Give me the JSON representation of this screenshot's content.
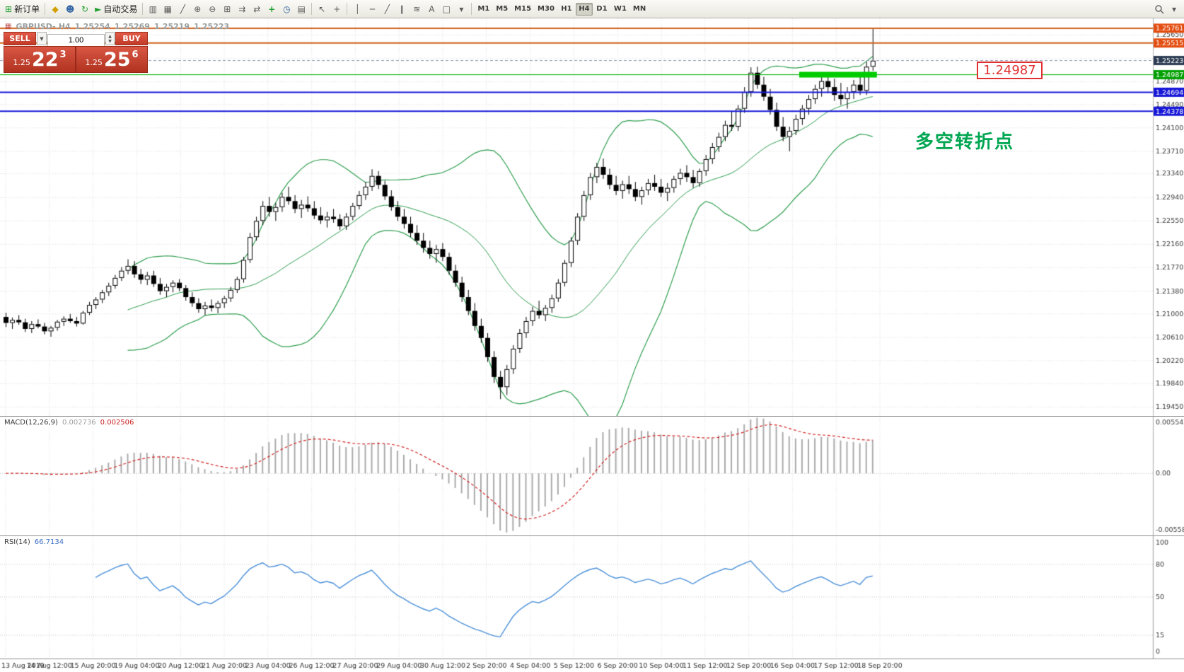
{
  "toolbar": {
    "new_order_label": "新订单",
    "autotrading_label": "自动交易",
    "timeframes": [
      "M1",
      "M5",
      "M15",
      "M30",
      "H1",
      "H4",
      "D1",
      "W1",
      "MN"
    ],
    "active_timeframe": "H4"
  },
  "icons": {
    "new_order": "⊞",
    "marketwatch": "◆",
    "navigator": "☻",
    "refresh": "↻",
    "autotrading_play": "►",
    "chart_bars": "▥",
    "chart_candles": "▦",
    "chart_line": "╱",
    "zoom_in": "⊕",
    "zoom_out": "⊖",
    "tile_windows": "⊞",
    "auto_scroll": "⇉",
    "chart_shift": "⇄",
    "indicators": "+",
    "periods": "◷",
    "templates": "▤",
    "cursor": "↖",
    "crosshair": "+",
    "vline": "│",
    "hline": "─",
    "trendline": "╱",
    "channel": "∥",
    "fibonacci": "≋",
    "text": "A",
    "label": "□",
    "shapes": "▾",
    "dropdown": "▼",
    "spin_up": "▲",
    "spin_down": "▼",
    "overflow": "▾",
    "chart_symbol": "▦"
  },
  "chart_header": {
    "symbol_period": "GBPUSD-.H4",
    "open": "1.25254",
    "high": "1.25269",
    "low": "1.25219",
    "close": "1.25223"
  },
  "trade_panel": {
    "sell_label": "SELL",
    "buy_label": "BUY",
    "volume": "1.00",
    "sell_price_prefix": "1.25",
    "sell_price_big": "22",
    "sell_price_sup": "3",
    "buy_price_prefix": "1.25",
    "buy_price_big": "25",
    "buy_price_sup": "6"
  },
  "annotations": {
    "price_label": "1.24987",
    "note_text": "多空转折点"
  },
  "macd_panel": {
    "label": "MACD(12,26,9)",
    "value_main": "0.002736",
    "value_signal": "0.002506",
    "axis": [
      "0.005543",
      "0.00",
      "-0.005583"
    ]
  },
  "rsi_panel": {
    "label": "RSI(14)",
    "value": "66.7134",
    "axis": [
      "100",
      "80",
      "50",
      "15",
      "0"
    ]
  },
  "time_axis": {
    "labels": [
      "13 Aug 2019",
      "14 Aug 12:00",
      "15 Aug 20:00",
      "19 Aug 04:00",
      "20 Aug 12:00",
      "21 Aug 20:00",
      "23 Aug 04:00",
      "26 Aug 12:00",
      "27 Aug 20:00",
      "29 Aug 04:00",
      "30 Aug 12:00",
      "2 Sep 20:00",
      "4 Sep 04:00",
      "5 Sep 12:00",
      "6 Sep 20:00",
      "10 Sep 04:00",
      "11 Sep 12:00",
      "12 Sep 20:00",
      "16 Sep 04:00",
      "17 Sep 12:00",
      "18 Sep 20:00"
    ]
  },
  "chart_data": [
    {
      "type": "candlestick",
      "title": "GBPUSD- H4",
      "ylim": [
        1.193,
        1.25925
      ],
      "bollinger": {
        "period": 20,
        "deviation": 2,
        "color": "#2f9e4f"
      },
      "grid_prices": [
        1.2565,
        1.2526,
        1.2487,
        1.2449,
        1.241,
        1.2371,
        1.2334,
        1.2294,
        1.2255,
        1.2216,
        1.2177,
        1.2138,
        1.21,
        1.2061,
        1.2022,
        1.1984,
        1.1945
      ],
      "axis_labels": [
        "1.25650",
        "1.24870",
        "1.24490",
        "1.24100",
        "1.23710",
        "1.23340",
        "1.22940",
        "1.22550",
        "1.22160",
        "1.21770",
        "1.21380",
        "1.21000",
        "1.20610",
        "1.20220",
        "1.19840",
        "1.19450"
      ],
      "hlines": [
        {
          "price": 1.25761,
          "color": "#d2641e",
          "width": 2
        },
        {
          "price": 1.25515,
          "color": "#d2641e",
          "width": 2
        },
        {
          "price": 1.24987,
          "color": "#00b000",
          "width": 1
        },
        {
          "price": 1.24694,
          "color": "#1616d8",
          "width": 2
        },
        {
          "price": 1.24378,
          "color": "#1616d8",
          "width": 2
        }
      ],
      "highlight_segment": {
        "price": 1.24987,
        "from_candle": 124,
        "to_candle": 135,
        "thickness": 8,
        "color": "#00cc00"
      },
      "bid": {
        "price": 1.25223,
        "text": "1.25223",
        "color": "#2c3b52"
      },
      "price_tags": [
        {
          "text": "1.25761",
          "price": 1.25761,
          "color": "#e44d10"
        },
        {
          "text": "1.25515",
          "price": 1.25515,
          "color": "#e44d10"
        },
        {
          "text": "1.25223",
          "price": 1.25223,
          "color": "#2c3b52"
        },
        {
          "text": "1.24987",
          "price": 1.24987,
          "color": "#00a000"
        },
        {
          "text": "1.24694",
          "price": 1.24694,
          "color": "#1616d8"
        },
        {
          "text": "1.24378",
          "price": 1.24378,
          "color": "#1616d8"
        }
      ],
      "ohlc": [
        [
          1.2095,
          1.2102,
          1.2078,
          1.2085
        ],
        [
          1.2085,
          1.2094,
          1.2075,
          1.209
        ],
        [
          1.209,
          1.2098,
          1.2082,
          1.2086
        ],
        [
          1.2086,
          1.2092,
          1.207,
          1.2075
        ],
        [
          1.2075,
          1.2088,
          1.2068,
          1.2083
        ],
        [
          1.2083,
          1.2091,
          1.2076,
          1.2079
        ],
        [
          1.2079,
          1.2085,
          1.2066,
          1.2071
        ],
        [
          1.2071,
          1.208,
          1.2062,
          1.2077
        ],
        [
          1.2077,
          1.209,
          1.2072,
          1.2087
        ],
        [
          1.2087,
          1.2096,
          1.208,
          1.2092
        ],
        [
          1.2092,
          1.21,
          1.2085,
          1.2088
        ],
        [
          1.2088,
          1.2095,
          1.2079,
          1.2084
        ],
        [
          1.2084,
          1.2105,
          1.2082,
          1.2102
        ],
        [
          1.2102,
          1.212,
          1.2098,
          1.2115
        ],
        [
          1.2115,
          1.2128,
          1.2108,
          1.2124
        ],
        [
          1.2124,
          1.214,
          1.2118,
          1.2136
        ],
        [
          1.2136,
          1.2152,
          1.213,
          1.2147
        ],
        [
          1.2147,
          1.2165,
          1.2142,
          1.216
        ],
        [
          1.216,
          1.2178,
          1.2155,
          1.2172
        ],
        [
          1.2172,
          1.2191,
          1.2166,
          1.218
        ],
        [
          1.218,
          1.2188,
          1.216,
          1.2166
        ],
        [
          1.2166,
          1.2175,
          1.215,
          1.2157
        ],
        [
          1.2157,
          1.217,
          1.2148,
          1.2164
        ],
        [
          1.2164,
          1.2172,
          1.2145,
          1.215
        ],
        [
          1.215,
          1.216,
          1.2132,
          1.2138
        ],
        [
          1.2138,
          1.215,
          1.2128,
          1.2145
        ],
        [
          1.2145,
          1.2156,
          1.2136,
          1.2152
        ],
        [
          1.2152,
          1.2158,
          1.2138,
          1.2143
        ],
        [
          1.2143,
          1.2148,
          1.2122,
          1.2128
        ],
        [
          1.2128,
          1.2136,
          1.2112,
          1.2118
        ],
        [
          1.2118,
          1.2126,
          1.2102,
          1.2108
        ],
        [
          1.2108,
          1.212,
          1.2098,
          1.2114
        ],
        [
          1.2114,
          1.2124,
          1.2104,
          1.211
        ],
        [
          1.211,
          1.2122,
          1.2101,
          1.2118
        ],
        [
          1.2118,
          1.213,
          1.211,
          1.2126
        ],
        [
          1.2126,
          1.2145,
          1.212,
          1.214
        ],
        [
          1.214,
          1.2162,
          1.2135,
          1.2158
        ],
        [
          1.2158,
          1.2195,
          1.2152,
          1.219
        ],
        [
          1.219,
          1.2235,
          1.2185,
          1.2228
        ],
        [
          1.2228,
          1.2262,
          1.2222,
          1.2255
        ],
        [
          1.2255,
          1.2288,
          1.2248,
          1.228
        ],
        [
          1.228,
          1.2295,
          1.2262,
          1.227
        ],
        [
          1.227,
          1.2285,
          1.2255,
          1.2278
        ],
        [
          1.2278,
          1.2302,
          1.227,
          1.2295
        ],
        [
          1.2295,
          1.2312,
          1.2282,
          1.2288
        ],
        [
          1.2288,
          1.2298,
          1.2268,
          1.2275
        ],
        [
          1.2275,
          1.229,
          1.226,
          1.2282
        ],
        [
          1.2282,
          1.2296,
          1.227,
          1.2276
        ],
        [
          1.2276,
          1.2288,
          1.2258,
          1.2264
        ],
        [
          1.2264,
          1.2278,
          1.225,
          1.2256
        ],
        [
          1.2256,
          1.227,
          1.2244,
          1.2262
        ],
        [
          1.2262,
          1.2275,
          1.2252,
          1.2258
        ],
        [
          1.2258,
          1.2266,
          1.224,
          1.2246
        ],
        [
          1.2246,
          1.2268,
          1.224,
          1.2262
        ],
        [
          1.2262,
          1.2285,
          1.2256,
          1.228
        ],
        [
          1.228,
          1.2305,
          1.2274,
          1.2298
        ],
        [
          1.2298,
          1.232,
          1.229,
          1.2312
        ],
        [
          1.2312,
          1.2341,
          1.2305,
          1.233
        ],
        [
          1.233,
          1.2338,
          1.2308,
          1.2315
        ],
        [
          1.2315,
          1.2322,
          1.229,
          1.2296
        ],
        [
          1.2296,
          1.2306,
          1.2272,
          1.2278
        ],
        [
          1.2278,
          1.2288,
          1.2255,
          1.2262
        ],
        [
          1.2262,
          1.2275,
          1.2242,
          1.225
        ],
        [
          1.225,
          1.2262,
          1.2228,
          1.2235
        ],
        [
          1.2235,
          1.2248,
          1.2215,
          1.2222
        ],
        [
          1.2222,
          1.2235,
          1.2202,
          1.221
        ],
        [
          1.221,
          1.2222,
          1.2192,
          1.22
        ],
        [
          1.22,
          1.2215,
          1.2185,
          1.2208
        ],
        [
          1.2208,
          1.2218,
          1.2188,
          1.2195
        ],
        [
          1.2195,
          1.2202,
          1.2165,
          1.2172
        ],
        [
          1.2172,
          1.2182,
          1.2145,
          1.2152
        ],
        [
          1.2152,
          1.2162,
          1.212,
          1.2128
        ],
        [
          1.2128,
          1.214,
          1.2098,
          1.2105
        ],
        [
          1.2105,
          1.2118,
          1.2072,
          1.208
        ],
        [
          1.208,
          1.2092,
          1.2052,
          1.206
        ],
        [
          1.206,
          1.2068,
          1.202,
          1.2028
        ],
        [
          1.2028,
          1.2038,
          1.1985,
          1.1995
        ],
        [
          1.1995,
          1.2005,
          1.1958,
          1.1978
        ],
        [
          1.1978,
          1.2015,
          1.1965,
          1.2008
        ],
        [
          1.2008,
          1.2048,
          1.2,
          1.2042
        ],
        [
          1.2042,
          1.2075,
          1.2035,
          1.2068
        ],
        [
          1.2068,
          1.2095,
          1.206,
          1.2088
        ],
        [
          1.2088,
          1.2112,
          1.208,
          1.2105
        ],
        [
          1.2105,
          1.2122,
          1.2092,
          1.2098
        ],
        [
          1.2098,
          1.2115,
          1.2088,
          1.211
        ],
        [
          1.211,
          1.2132,
          1.2102,
          1.2126
        ],
        [
          1.2126,
          1.2158,
          1.212,
          1.2152
        ],
        [
          1.2152,
          1.219,
          1.2146,
          1.2185
        ],
        [
          1.2185,
          1.2228,
          1.2178,
          1.2222
        ],
        [
          1.2222,
          1.2268,
          1.2215,
          1.2262
        ],
        [
          1.2262,
          1.2305,
          1.2255,
          1.2298
        ],
        [
          1.2298,
          1.2335,
          1.229,
          1.2328
        ],
        [
          1.2328,
          1.2352,
          1.2318,
          1.2345
        ],
        [
          1.2345,
          1.2359,
          1.2325,
          1.2332
        ],
        [
          1.2332,
          1.2342,
          1.2308,
          1.2315
        ],
        [
          1.2315,
          1.233,
          1.2298,
          1.2305
        ],
        [
          1.2305,
          1.2322,
          1.2292,
          1.2316
        ],
        [
          1.2316,
          1.233,
          1.23,
          1.2308
        ],
        [
          1.2308,
          1.232,
          1.2288,
          1.2295
        ],
        [
          1.2295,
          1.2312,
          1.2282,
          1.2306
        ],
        [
          1.2306,
          1.2325,
          1.2298,
          1.2318
        ],
        [
          1.2318,
          1.2332,
          1.2305,
          1.2312
        ],
        [
          1.2312,
          1.2325,
          1.2295,
          1.2302
        ],
        [
          1.2302,
          1.2318,
          1.2288,
          1.231
        ],
        [
          1.231,
          1.233,
          1.2302,
          1.2325
        ],
        [
          1.2325,
          1.2342,
          1.2315,
          1.2335
        ],
        [
          1.2335,
          1.2348,
          1.232,
          1.2328
        ],
        [
          1.2328,
          1.234,
          1.231,
          1.2318
        ],
        [
          1.2318,
          1.2342,
          1.2312,
          1.2338
        ],
        [
          1.2338,
          1.2365,
          1.233,
          1.2358
        ],
        [
          1.2358,
          1.2385,
          1.235,
          1.2378
        ],
        [
          1.2378,
          1.2402,
          1.237,
          1.2395
        ],
        [
          1.2395,
          1.2422,
          1.2388,
          1.2415
        ],
        [
          1.2415,
          1.2438,
          1.2405,
          1.2412
        ],
        [
          1.2412,
          1.2448,
          1.2405,
          1.2442
        ],
        [
          1.2442,
          1.2478,
          1.2435,
          1.247
        ],
        [
          1.247,
          1.2511,
          1.2462,
          1.2502
        ],
        [
          1.2502,
          1.2512,
          1.2475,
          1.2482
        ],
        [
          1.2482,
          1.2495,
          1.2455,
          1.2462
        ],
        [
          1.2462,
          1.2475,
          1.2432,
          1.244
        ],
        [
          1.244,
          1.2452,
          1.2405,
          1.2412
        ],
        [
          1.2412,
          1.2428,
          1.2388,
          1.2395
        ],
        [
          1.2395,
          1.2412,
          1.2371,
          1.2405
        ],
        [
          1.2405,
          1.2432,
          1.2398,
          1.2425
        ],
        [
          1.2425,
          1.2448,
          1.2415,
          1.2442
        ],
        [
          1.2442,
          1.2465,
          1.2432,
          1.2458
        ],
        [
          1.2458,
          1.2482,
          1.245,
          1.2475
        ],
        [
          1.2475,
          1.2495,
          1.2462,
          1.2488
        ],
        [
          1.2488,
          1.25,
          1.2468,
          1.2478
        ],
        [
          1.2478,
          1.2492,
          1.2455,
          1.2465
        ],
        [
          1.2465,
          1.2485,
          1.2448,
          1.2458
        ],
        [
          1.2458,
          1.2478,
          1.2442,
          1.247
        ],
        [
          1.247,
          1.249,
          1.2458,
          1.2482
        ],
        [
          1.2482,
          1.2498,
          1.2465,
          1.2472
        ],
        [
          1.2472,
          1.252,
          1.2465,
          1.2512
        ],
        [
          1.2512,
          1.2576,
          1.2505,
          1.2522
        ]
      ]
    },
    {
      "type": "macd",
      "params": {
        "fast": 12,
        "slow": 26,
        "signal": 9
      },
      "histogram_color": "#ababab",
      "signal_color": "#d22222",
      "scale_max": 0.005543,
      "scale_min": -0.005583
    },
    {
      "type": "rsi",
      "period": 14,
      "color": "#4a90d9",
      "levels": [
        80,
        50,
        15
      ],
      "range": [
        0,
        100
      ],
      "current": 66.7134
    }
  ]
}
